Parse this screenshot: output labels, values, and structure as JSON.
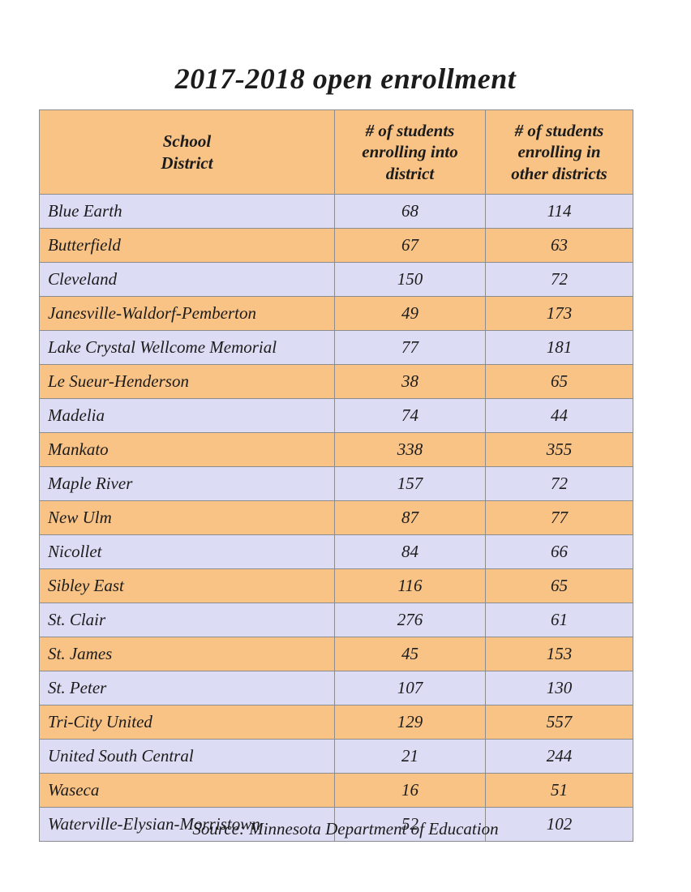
{
  "title": "2017-2018 open enrollment",
  "source": "Source: Minnesota Department of Education",
  "colors": {
    "orange": "#f9c386",
    "lavender": "#dcdcf4",
    "border": "#8c8c8c"
  },
  "table": {
    "headers": [
      "School\nDistrict",
      "#  of students\nenrolling into\ndistrict",
      "#  of students\nenrolling in\nother districts"
    ]
  },
  "chart_data": {
    "type": "table",
    "title": "2017-2018 open enrollment",
    "columns": [
      "School District",
      "# of students enrolling into district",
      "# of students enrolling in other districts"
    ],
    "rows": [
      [
        "Blue Earth",
        68,
        114
      ],
      [
        "Butterfield",
        67,
        63
      ],
      [
        "Cleveland",
        150,
        72
      ],
      [
        "Janesville-Waldorf-Pemberton",
        49,
        173
      ],
      [
        "Lake Crystal Wellcome Memorial",
        77,
        181
      ],
      [
        "Le Sueur-Henderson",
        38,
        65
      ],
      [
        "Madelia",
        74,
        44
      ],
      [
        "Mankato",
        338,
        355
      ],
      [
        "Maple River",
        157,
        72
      ],
      [
        "New Ulm",
        87,
        77
      ],
      [
        "Nicollet",
        84,
        66
      ],
      [
        "Sibley East",
        116,
        65
      ],
      [
        "St. Clair",
        276,
        61
      ],
      [
        "St. James",
        45,
        153
      ],
      [
        "St. Peter",
        107,
        130
      ],
      [
        "Tri-City United",
        129,
        557
      ],
      [
        "United South Central",
        21,
        244
      ],
      [
        "Waseca",
        16,
        51
      ],
      [
        "Waterville-Elysian-Morristown",
        52,
        102
      ]
    ],
    "source": "Source: Minnesota Department of Education"
  }
}
